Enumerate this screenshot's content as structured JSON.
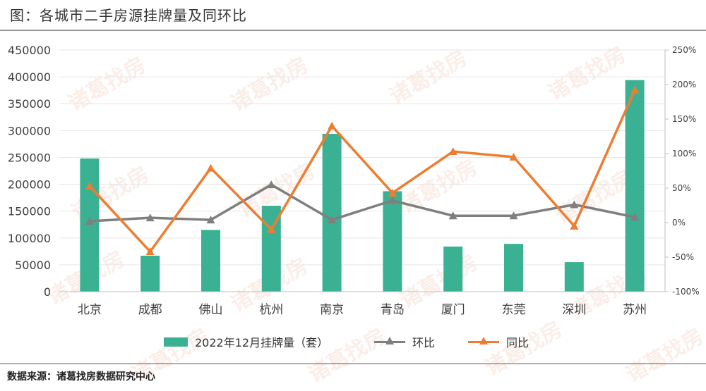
{
  "figure_title": "图：各城市二手房源挂牌量及同环比",
  "source": "数据来源：诸葛找房数据研究中心",
  "watermark_text": "诸葛找房",
  "colors": {
    "bar": "#3bb193",
    "mom": "#7f7f7f",
    "yoy": "#ed7d31",
    "axis": "#bfbfbf",
    "text": "#404040"
  },
  "chart_data": {
    "type": "bar",
    "categories": [
      "北京",
      "成都",
      "佛山",
      "杭州",
      "南京",
      "青岛",
      "厦门",
      "东莞",
      "深圳",
      "苏州"
    ],
    "ylim": [
      0,
      450000
    ],
    "y_ticks": [
      "450000",
      "400000",
      "350000",
      "300000",
      "250000",
      "200000",
      "150000",
      "100000",
      "50000",
      "0"
    ],
    "y2lim": [
      -100,
      250
    ],
    "y2_ticks": [
      "250%",
      "200%",
      "150%",
      "100%",
      "50%",
      "0%",
      "-50%",
      "-100%"
    ],
    "series": [
      {
        "name": "2022年12月挂牌量（套）",
        "type": "bar",
        "axis": "left",
        "values": [
          248000,
          67000,
          115000,
          160000,
          294000,
          187000,
          84000,
          89000,
          55000,
          394000
        ]
      },
      {
        "name": "环比",
        "type": "line",
        "axis": "right",
        "marker": "triangle",
        "values": [
          2,
          7,
          4,
          55,
          4,
          32,
          10,
          10,
          26,
          8
        ]
      },
      {
        "name": "同比",
        "type": "line",
        "axis": "right",
        "marker": "triangle",
        "values": [
          53,
          -42,
          79,
          -10,
          140,
          43,
          103,
          95,
          -5,
          192
        ]
      }
    ]
  }
}
